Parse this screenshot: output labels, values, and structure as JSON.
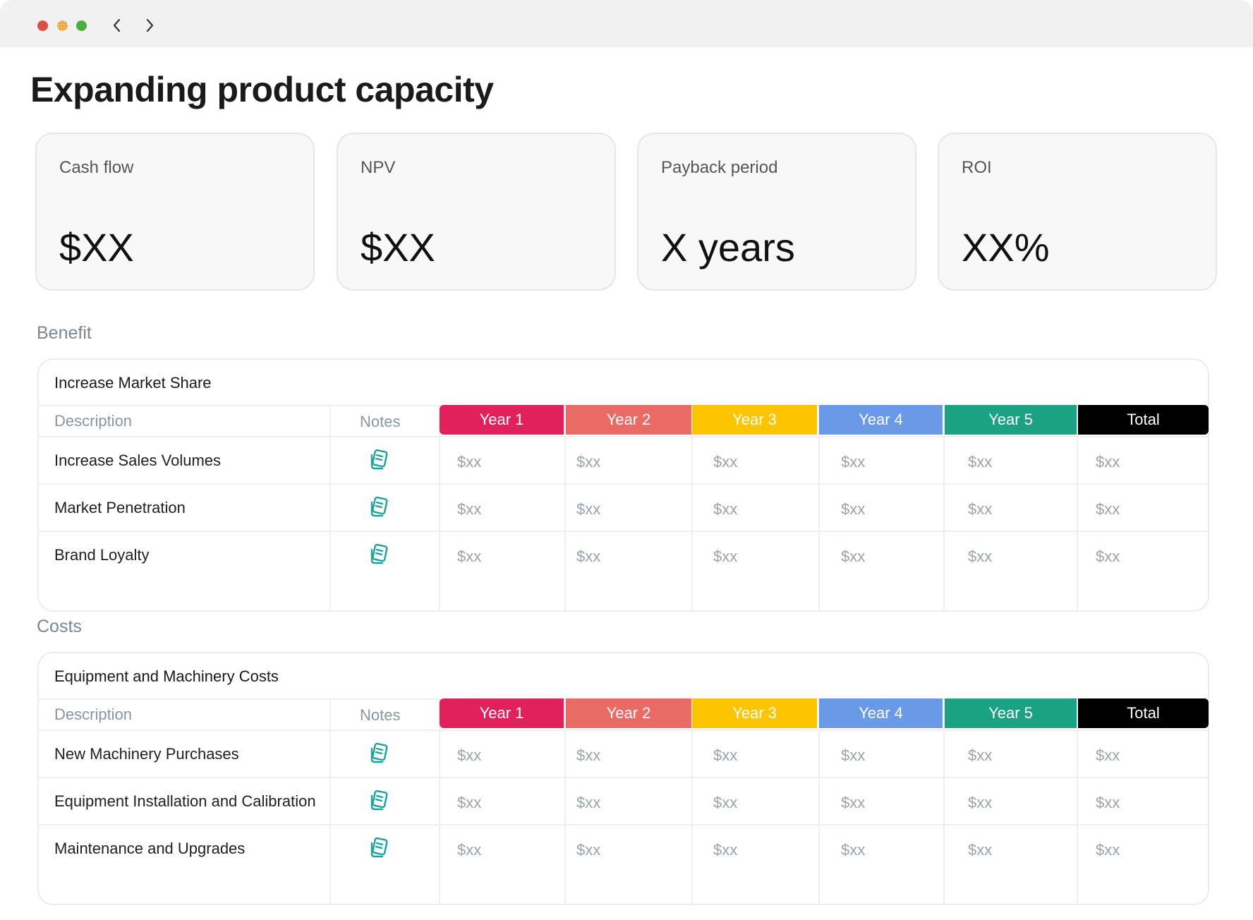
{
  "window": {
    "controls": [
      "close",
      "minimize",
      "zoom"
    ],
    "nav": {
      "back_icon": "chevron-left-icon",
      "forward_icon": "chevron-right-icon"
    }
  },
  "page": {
    "title": "Expanding product capacity"
  },
  "kpis": [
    {
      "label": "Cash flow",
      "value": "$XX"
    },
    {
      "label": "NPV",
      "value": "$XX"
    },
    {
      "label": "Payback period",
      "value": "X years"
    },
    {
      "label": "ROI",
      "value": "XX%"
    }
  ],
  "columns": {
    "description": "Description",
    "notes": "Notes",
    "years": [
      {
        "label": "Year 1",
        "color": "#e0215b"
      },
      {
        "label": "Year 2",
        "color": "#ea6a66"
      },
      {
        "label": "Year 3",
        "color": "#fdc400"
      },
      {
        "label": "Year 4",
        "color": "#6a99e8"
      },
      {
        "label": "Year 5",
        "color": "#1aa283"
      },
      {
        "label": "Total",
        "color": "#000000"
      }
    ]
  },
  "sections": [
    {
      "label": "Benefit",
      "group": "Increase Market Share",
      "rows": [
        {
          "description": "Increase Sales Volumes",
          "values": [
            "$xx",
            "$xx",
            "$xx",
            "$xx",
            "$xx",
            "$xx"
          ]
        },
        {
          "description": "Market Penetration",
          "values": [
            "$xx",
            "$xx",
            "$xx",
            "$xx",
            "$xx",
            "$xx"
          ]
        },
        {
          "description": "Brand Loyalty",
          "values": [
            "$xx",
            "$xx",
            "$xx",
            "$xx",
            "$xx",
            "$xx"
          ]
        }
      ]
    },
    {
      "label": "Costs",
      "group": "Equipment and Machinery Costs",
      "rows": [
        {
          "description": "New Machinery Purchases",
          "values": [
            "$xx",
            "$xx",
            "$xx",
            "$xx",
            "$xx",
            "$xx"
          ]
        },
        {
          "description": "Equipment Installation and Calibration",
          "values": [
            "$xx",
            "$xx",
            "$xx",
            "$xx",
            "$xx",
            "$xx"
          ]
        },
        {
          "description": "Maintenance and Upgrades",
          "values": [
            "$xx",
            "$xx",
            "$xx",
            "$xx",
            "$xx",
            "$xx"
          ]
        }
      ]
    }
  ],
  "icons": {
    "note": "notes-icon",
    "note_color": "#1aa2a0"
  }
}
